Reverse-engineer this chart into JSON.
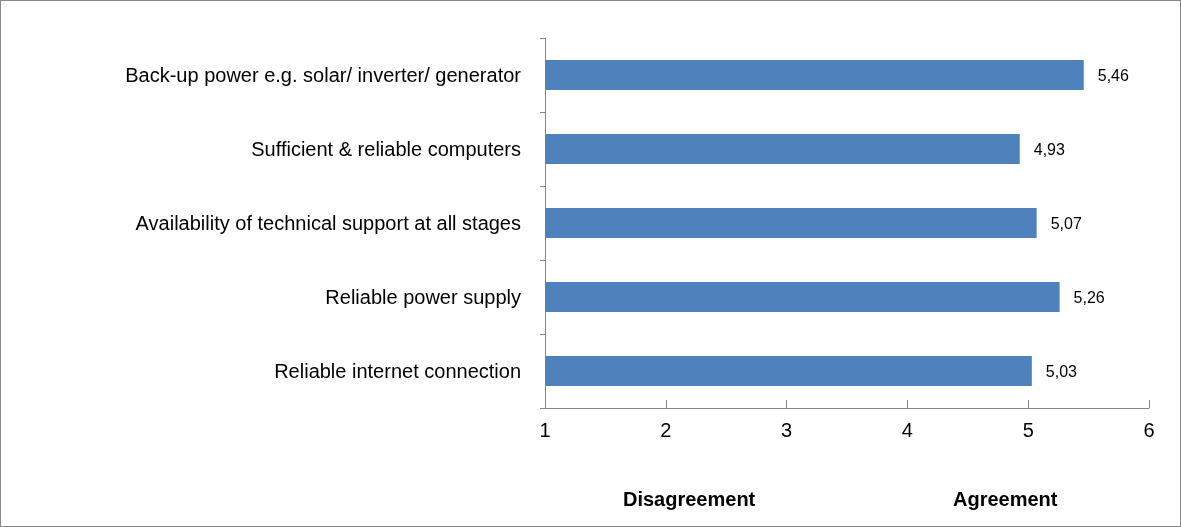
{
  "chart_data": {
    "type": "bar",
    "orientation": "horizontal",
    "categories": [
      "Back-up power e.g. solar/ inverter/ generator",
      "Sufficient & reliable computers",
      "Availability of technical support at all stages",
      "Reliable power supply",
      "Reliable internet connection"
    ],
    "values": [
      5.46,
      4.93,
      5.07,
      5.26,
      5.03
    ],
    "value_labels": [
      "5,46",
      "4,93",
      "5,07",
      "5,26",
      "5,03"
    ],
    "color": "#4f81bd",
    "xlim": [
      1,
      6
    ],
    "xticks": [
      1,
      2,
      3,
      4,
      5,
      6
    ],
    "grid": false,
    "annotations": [
      "Disagreement",
      "Agreement"
    ]
  }
}
